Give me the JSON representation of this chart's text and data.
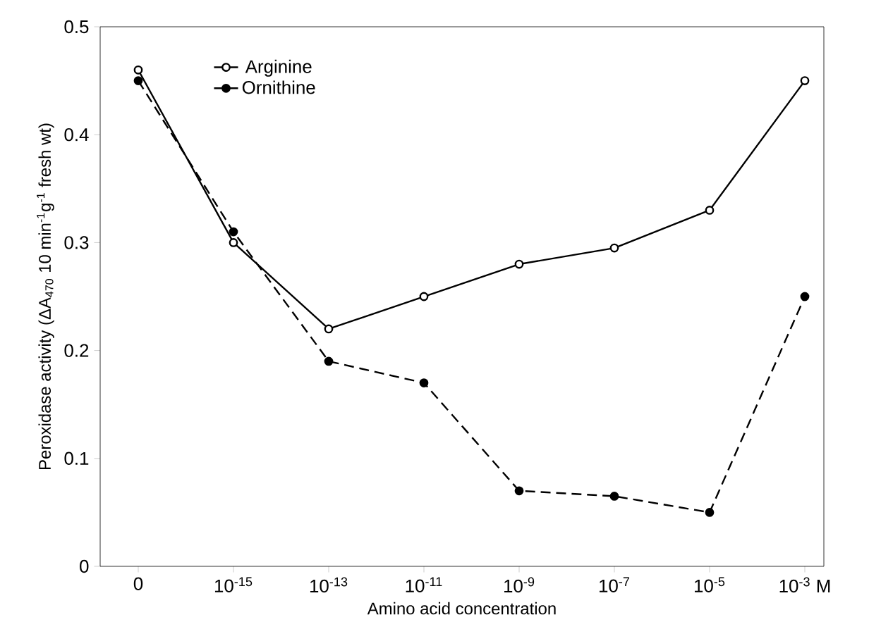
{
  "chart_data": {
    "type": "line",
    "xlabel": "Amino acid concentration",
    "ylabel": "Peroxidase activity (ΔA$_{470}$ 10 min$^{-1}$g$^{-1}$ fresh wt)",
    "categories": [
      "0",
      "10$^{-15}$",
      "10$^{-13}$",
      "10$^{-11}$",
      "10$^{-9}$",
      "10$^{-7}$",
      "10$^{-5}$",
      "10$^{-3}$ M"
    ],
    "series": [
      {
        "name": "Arginine",
        "color": "#000000",
        "line_style": "solid",
        "values": [
          0.46,
          0.3,
          0.22,
          0.25,
          0.28,
          0.295,
          0.33,
          0.45
        ]
      },
      {
        "name": "Ornithine",
        "color": "#000000",
        "line_style": "dashed",
        "values": [
          0.45,
          0.31,
          0.19,
          0.17,
          0.07,
          0.065,
          0.05,
          0.25
        ]
      }
    ],
    "ylim": [
      0,
      0.5
    ],
    "yticks": [
      0,
      0.1,
      0.2,
      0.3,
      0.4,
      0.5
    ],
    "marker": "circle",
    "legend": "top left",
    "grid": false
  }
}
